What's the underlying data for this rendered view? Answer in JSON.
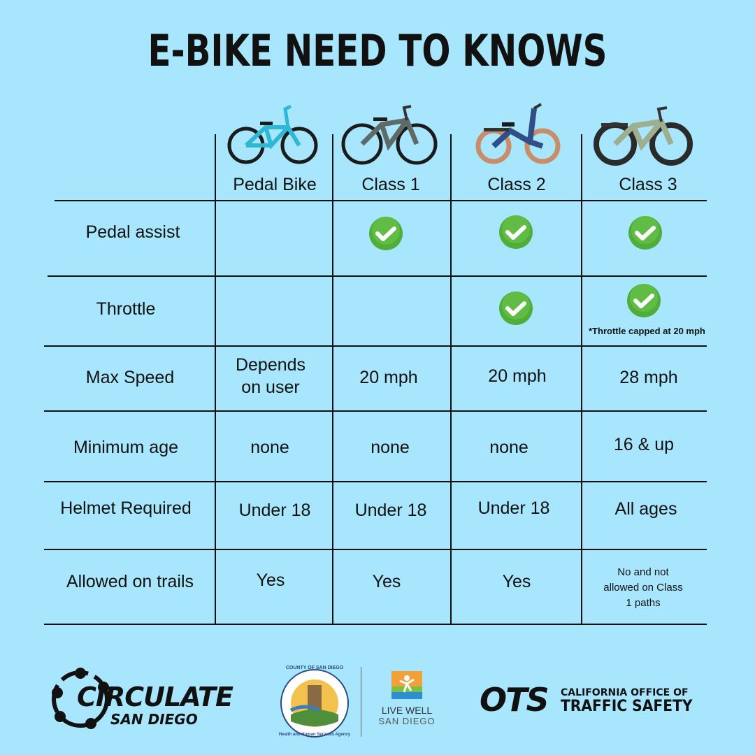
{
  "title": "E-BIKE NEED TO KNOWS",
  "columns": [
    "Pedal Bike",
    "Class 1",
    "Class 2",
    "Class 3"
  ],
  "rows": [
    {
      "label": "Pedal assist",
      "cells": [
        "",
        "check",
        "check",
        "check"
      ]
    },
    {
      "label": "Throttle",
      "cells": [
        "",
        "",
        "check",
        "check"
      ]
    },
    {
      "label": "Max Speed",
      "cells": [
        "Depends on user",
        "20 mph",
        "20 mph",
        "28 mph"
      ]
    },
    {
      "label": "Minimum age",
      "cells": [
        "none",
        "none",
        "none",
        "16 & up"
      ]
    },
    {
      "label": "Helmet Required",
      "cells": [
        "Under 18",
        "Under 18",
        "Under 18",
        "All ages"
      ]
    },
    {
      "label": "Allowed on trails",
      "cells": [
        "Yes",
        "Yes",
        "Yes",
        "No and not allowed on Class 1 paths"
      ]
    }
  ],
  "throttle_note": "*Throttle capped at 20 mph",
  "logos": {
    "circulate_main": "CIRCULATE",
    "circulate_sub": "SAN DIEGO",
    "county_top": "COUNTY OF SAN DIEGO",
    "county_bottom": "Health and Human Services Agency",
    "livewell_main": "LIVE WELL",
    "livewell_sub": "SAN DIEGO",
    "ots_mark": "OTS",
    "ots_line1": "CALIFORNIA OFFICE OF",
    "ots_line2": "TRAFFIC SAFETY"
  },
  "colors": {
    "background": "#a7e6fd",
    "check_green": "#4fae3a",
    "pedal_bike": "#2fb8d6",
    "class1_bike": "#5e6a66",
    "class2_bike": "#2f4f86",
    "class3_bike": "#9fae8e"
  }
}
